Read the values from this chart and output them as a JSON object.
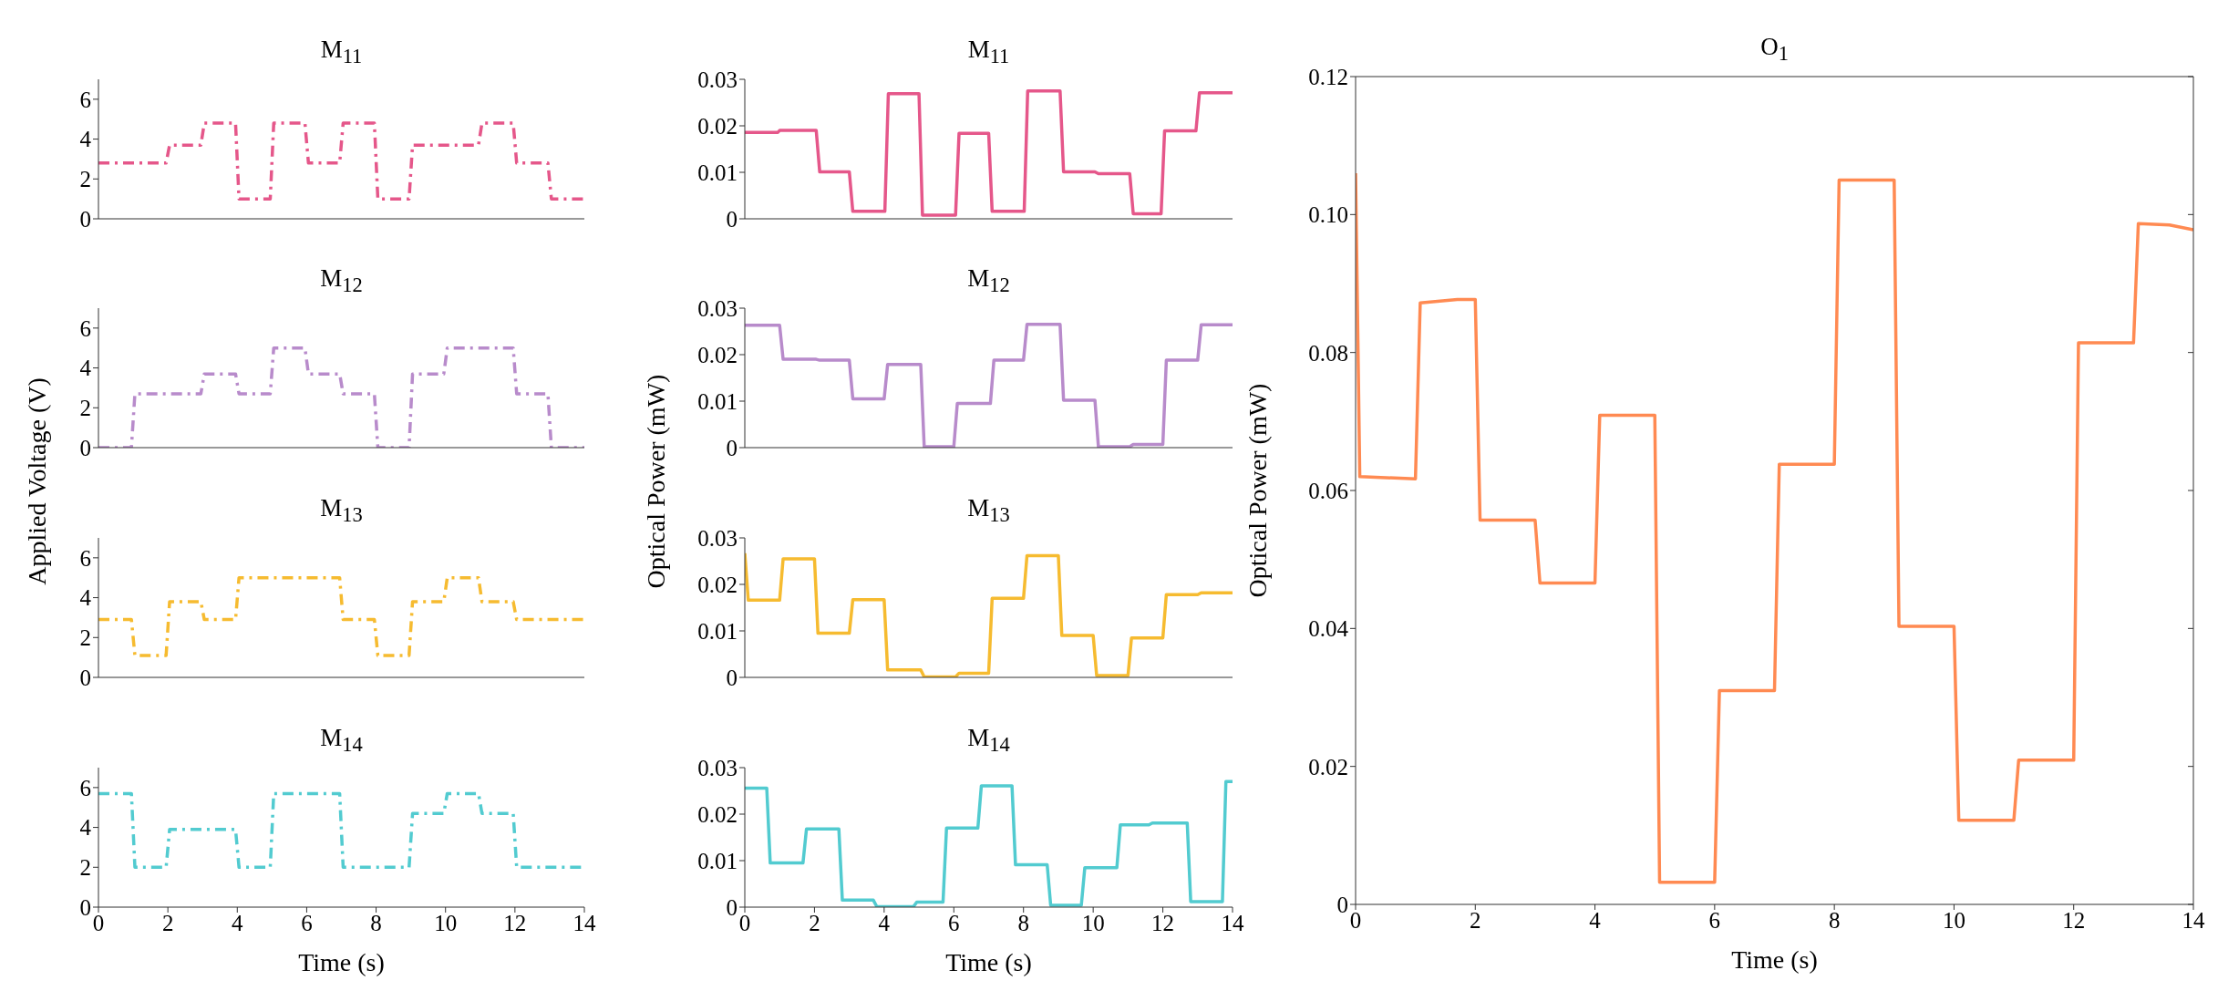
{
  "chart_data": [
    {
      "type": "line",
      "title": "M$_{11}$",
      "xlim": [
        0,
        14
      ],
      "xticks": [
        0,
        2,
        4,
        6,
        8,
        10,
        12,
        14
      ],
      "ylim": [
        0,
        7
      ],
      "yticks": [
        0,
        2,
        4,
        6
      ],
      "tick_labels": "y",
      "line_style": "dashed",
      "series": [
        {
          "color": "#e5578a",
          "x": [
            0,
            1.95,
            2.05,
            2.95,
            3.05,
            3.95,
            4.05,
            4.95,
            5.05,
            5.95,
            6.05,
            6.95,
            7.05,
            7.95,
            8.05,
            8.95,
            9.05,
            10.95,
            11.05,
            11.95,
            12.05,
            12.95,
            13.05,
            14
          ],
          "values": [
            2.8,
            2.8,
            3.7,
            3.7,
            4.8,
            4.8,
            1.0,
            1.0,
            4.8,
            4.8,
            2.8,
            2.8,
            4.8,
            4.8,
            1.0,
            1.0,
            3.7,
            3.7,
            4.8,
            4.8,
            2.8,
            2.8,
            1.0,
            1.0
          ]
        }
      ]
    },
    {
      "type": "line",
      "title": "M$_{12}$",
      "ylabel": "Applied Voltage (V)",
      "xlim": [
        0,
        14
      ],
      "xticks": [
        0,
        2,
        4,
        6,
        8,
        10,
        12,
        14
      ],
      "ylim": [
        0,
        7
      ],
      "yticks": [
        0,
        2,
        4,
        6
      ],
      "tick_labels": "y",
      "line_style": "dashed",
      "series": [
        {
          "color": "#b88bcb",
          "x": [
            0,
            0.95,
            1.05,
            2.95,
            3.05,
            3.95,
            4.05,
            4.95,
            5.05,
            5.95,
            6.05,
            6.95,
            7.05,
            7.95,
            8.05,
            8.95,
            9.05,
            9.95,
            10.05,
            11.95,
            12.05,
            12.95,
            13.05,
            14
          ],
          "values": [
            0,
            0,
            2.7,
            2.7,
            3.7,
            3.7,
            2.7,
            2.7,
            5.0,
            5.0,
            3.7,
            3.7,
            2.7,
            2.7,
            0,
            0,
            3.7,
            3.7,
            5.0,
            5.0,
            2.7,
            2.7,
            0,
            0
          ]
        }
      ]
    },
    {
      "type": "line",
      "title": "M$_{13}$",
      "xlim": [
        0,
        14
      ],
      "xticks": [
        0,
        2,
        4,
        6,
        8,
        10,
        12,
        14
      ],
      "ylim": [
        0,
        7
      ],
      "yticks": [
        0,
        2,
        4,
        6
      ],
      "tick_labels": "y",
      "line_style": "dashed",
      "series": [
        {
          "color": "#f6bb30",
          "x": [
            0,
            0.95,
            1.05,
            1.95,
            2.05,
            2.95,
            3.05,
            3.95,
            4.05,
            6.95,
            7.05,
            7.95,
            8.05,
            8.95,
            9.05,
            9.95,
            10.05,
            10.95,
            11.05,
            11.95,
            12.05,
            14
          ],
          "values": [
            2.9,
            2.9,
            1.1,
            1.1,
            3.8,
            3.8,
            2.9,
            2.9,
            5.0,
            5.0,
            2.9,
            2.9,
            1.1,
            1.1,
            3.8,
            3.8,
            5.0,
            5.0,
            3.8,
            3.8,
            2.9,
            2.9
          ]
        }
      ]
    },
    {
      "type": "line",
      "title": "M$_{14}$",
      "xlabel": "Time (s)",
      "xlim": [
        0,
        14
      ],
      "xticks": [
        0,
        2,
        4,
        6,
        8,
        10,
        12,
        14
      ],
      "ylim": [
        0,
        7
      ],
      "yticks": [
        0,
        2,
        4,
        6
      ],
      "line_style": "dashed",
      "series": [
        {
          "color": "#52cbd0",
          "x": [
            0,
            0.95,
            1.05,
            1.95,
            2.05,
            3.95,
            4.05,
            4.95,
            5.05,
            6.95,
            7.05,
            8.95,
            9.05,
            9.95,
            10.05,
            10.95,
            11.05,
            11.95,
            12.05,
            14
          ],
          "values": [
            5.7,
            5.7,
            2.0,
            2.0,
            3.9,
            3.9,
            2.0,
            2.0,
            5.7,
            5.7,
            2.0,
            2.0,
            4.7,
            4.7,
            5.7,
            5.7,
            4.7,
            4.7,
            2.0,
            2.0
          ]
        }
      ]
    },
    {
      "type": "line",
      "title": "M$_{11}$",
      "xlim": [
        0,
        14
      ],
      "xticks": [
        0,
        2,
        4,
        6,
        8,
        10,
        12,
        14
      ],
      "ylim": [
        0,
        0.03
      ],
      "yticks": [
        0,
        0.01,
        0.02,
        0.03
      ],
      "tick_labels": "y",
      "line_style": "solid",
      "series": [
        {
          "color": "#e5578a",
          "x": [
            0,
            0.95,
            1.0,
            2.05,
            2.15,
            3.0,
            3.1,
            4.02,
            4.12,
            5.0,
            5.1,
            6.05,
            6.15,
            7.0,
            7.1,
            8.02,
            8.12,
            9.05,
            9.15,
            10.05,
            10.15,
            11.05,
            11.15,
            11.95,
            12.05,
            12.95,
            13.05,
            14
          ],
          "values": [
            0.0186,
            0.0186,
            0.019,
            0.019,
            0.0101,
            0.0101,
            0.0016,
            0.0016,
            0.0269,
            0.0269,
            0.0008,
            0.0008,
            0.0184,
            0.0184,
            0.0016,
            0.0016,
            0.0275,
            0.0275,
            0.0101,
            0.0101,
            0.0097,
            0.0097,
            0.0011,
            0.0011,
            0.0189,
            0.0189,
            0.0271,
            0.0271
          ]
        }
      ]
    },
    {
      "type": "line",
      "title": "M$_{12}$",
      "ylabel": "Optical Power (mW)",
      "xlim": [
        0,
        14
      ],
      "xticks": [
        0,
        2,
        4,
        6,
        8,
        10,
        12,
        14
      ],
      "ylim": [
        0,
        0.03
      ],
      "yticks": [
        0,
        0.01,
        0.02,
        0.03
      ],
      "tick_labels": "y",
      "line_style": "solid",
      "series": [
        {
          "color": "#b88bcb",
          "x": [
            0,
            1.0,
            1.1,
            2.05,
            2.15,
            3.0,
            3.1,
            4.0,
            4.1,
            5.05,
            5.15,
            6.0,
            6.1,
            7.05,
            7.15,
            8.0,
            8.1,
            9.05,
            9.15,
            10.05,
            10.15,
            11.05,
            11.15,
            12.0,
            12.1,
            13.0,
            13.1,
            14
          ],
          "values": [
            0.0263,
            0.0263,
            0.019,
            0.019,
            0.0188,
            0.0188,
            0.0105,
            0.0105,
            0.0179,
            0.0179,
            0.0002,
            0.0002,
            0.0095,
            0.0095,
            0.0188,
            0.0188,
            0.0265,
            0.0265,
            0.0102,
            0.0102,
            0.0002,
            0.0002,
            0.0007,
            0.0007,
            0.0188,
            0.0188,
            0.0264,
            0.0264
          ]
        }
      ]
    },
    {
      "type": "line",
      "title": "M$_{13}$",
      "xlim": [
        0,
        14
      ],
      "xticks": [
        0,
        2,
        4,
        6,
        8,
        10,
        12,
        14
      ],
      "ylim": [
        0,
        0.03
      ],
      "yticks": [
        0,
        0.01,
        0.02,
        0.03
      ],
      "tick_labels": "y",
      "line_style": "solid",
      "series": [
        {
          "color": "#f6bb30",
          "x": [
            0,
            0.1,
            1.0,
            1.1,
            2.0,
            2.1,
            3.0,
            3.1,
            4.0,
            4.1,
            5.05,
            5.15,
            6.05,
            6.15,
            7.0,
            7.1,
            8.0,
            8.1,
            9.0,
            9.1,
            10.0,
            10.1,
            11.0,
            11.1,
            12.0,
            12.1,
            13.0,
            13.1,
            14
          ],
          "values": [
            0.0267,
            0.0166,
            0.0166,
            0.0255,
            0.0255,
            0.0095,
            0.0095,
            0.0167,
            0.0167,
            0.0016,
            0.0016,
            0.0001,
            0.0001,
            0.0009,
            0.0009,
            0.017,
            0.017,
            0.0262,
            0.0262,
            0.009,
            0.009,
            0.0004,
            0.0004,
            0.0085,
            0.0085,
            0.0178,
            0.0178,
            0.0182,
            0.0182
          ]
        }
      ]
    },
    {
      "type": "line",
      "title": "M$_{14}$",
      "xlabel": "Time (s)",
      "xlim": [
        0,
        14
      ],
      "xticks": [
        0,
        2,
        4,
        6,
        8,
        10,
        12,
        14
      ],
      "ylim": [
        0,
        0.03
      ],
      "yticks": [
        0,
        0.01,
        0.02,
        0.03
      ],
      "line_style": "solid",
      "series": [
        {
          "color": "#52cbd0",
          "x": [
            0,
            0.63,
            0.73,
            1.67,
            1.77,
            2.7,
            2.8,
            3.69,
            3.79,
            4.84,
            4.94,
            5.69,
            5.79,
            6.69,
            6.79,
            7.67,
            7.77,
            8.68,
            8.78,
            9.66,
            9.76,
            10.68,
            10.78,
            11.6,
            11.7,
            12.7,
            12.8,
            13.71,
            13.81,
            14
          ],
          "values": [
            0.0256,
            0.0256,
            0.0095,
            0.0095,
            0.0168,
            0.0168,
            0.0015,
            0.0015,
            0.0001,
            0.0001,
            0.0011,
            0.0011,
            0.017,
            0.017,
            0.0261,
            0.0261,
            0.0091,
            0.0091,
            0.0004,
            0.0004,
            0.0085,
            0.0085,
            0.0177,
            0.0177,
            0.0181,
            0.0181,
            0.0012,
            0.0012,
            0.027,
            0.027
          ]
        }
      ]
    },
    {
      "type": "line",
      "title": "O$_{1}$",
      "xlabel": "Time (s)",
      "ylabel": "Optical Power (mW)",
      "xlim": [
        0,
        14
      ],
      "xticks": [
        0,
        2,
        4,
        6,
        8,
        10,
        12,
        14
      ],
      "ylim": [
        0,
        0.12
      ],
      "yticks": [
        0,
        0.02,
        0.04,
        0.06,
        0.08,
        {
          "value": 0.1,
          "label": "0.10"
        },
        0.12
      ],
      "line_style": "solid",
      "series": [
        {
          "color": "#ff8a52",
          "x": [
            0,
            0.07,
            1.0,
            1.08,
            1.7,
            2.0,
            2.08,
            3.0,
            3.08,
            4.0,
            4.08,
            5.0,
            5.08,
            6.0,
            6.08,
            7.0,
            7.08,
            8.0,
            8.08,
            9.0,
            9.08,
            10.0,
            10.08,
            11.0,
            11.08,
            12.0,
            12.08,
            13.0,
            13.08,
            13.6,
            14
          ],
          "values": [
            0.106,
            0.062,
            0.0617,
            0.0872,
            0.0877,
            0.0877,
            0.0557,
            0.0557,
            0.0466,
            0.0466,
            0.0709,
            0.0709,
            0.0032,
            0.0032,
            0.031,
            0.031,
            0.0638,
            0.0638,
            0.105,
            0.105,
            0.0403,
            0.0403,
            0.0122,
            0.0122,
            0.0209,
            0.0209,
            0.0814,
            0.0814,
            0.0987,
            0.0985,
            0.0978
          ]
        }
      ]
    }
  ]
}
